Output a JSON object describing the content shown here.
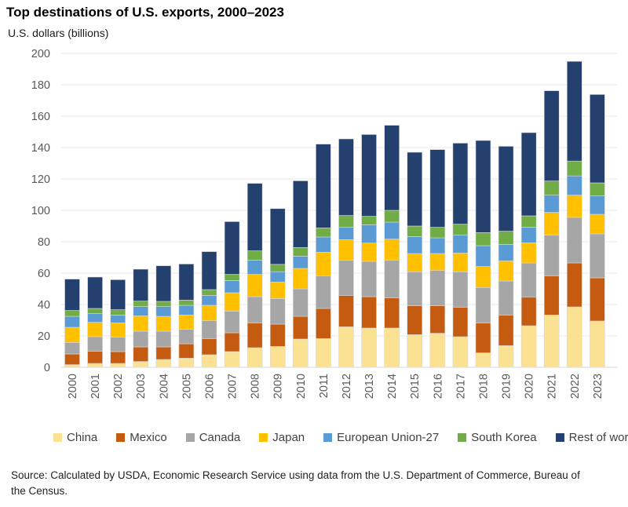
{
  "header": {
    "title": "Top destinations of U.S. exports, 2000–2023",
    "subtitle": "U.S. dollars (billions)"
  },
  "chart_data": {
    "type": "bar",
    "stacked": true,
    "title": "Top destinations of U.S. exports, 2000–2023",
    "ylabel": "U.S. dollars (billions)",
    "xlabel": "",
    "ylim": [
      0,
      200
    ],
    "ytick_step": 20,
    "grid": true,
    "legend_position": "bottom",
    "categories": [
      2000,
      2001,
      2002,
      2003,
      2004,
      2005,
      2006,
      2007,
      2008,
      2009,
      2010,
      2011,
      2012,
      2013,
      2014,
      2015,
      2016,
      2017,
      2018,
      2019,
      2020,
      2021,
      2022,
      2023
    ],
    "series": [
      {
        "name": "China",
        "color": "#FBE192",
        "values": [
          1.7,
          2.5,
          2.5,
          3.7,
          5.0,
          5.8,
          8.0,
          10.0,
          12.5,
          13.3,
          18.0,
          18.3,
          25.8,
          25.0,
          25.0,
          20.8,
          21.7,
          19.5,
          9.2,
          13.8,
          26.5,
          33.3,
          38.5,
          29.5
        ]
      },
      {
        "name": "Mexico",
        "color": "#C55A11",
        "values": [
          6.8,
          7.8,
          7.5,
          9.3,
          8.0,
          9.2,
          10.3,
          12.0,
          15.8,
          14.2,
          14.5,
          19.2,
          20.0,
          20.0,
          19.2,
          18.4,
          17.5,
          18.8,
          19.1,
          19.5,
          18.3,
          25.0,
          28.0,
          27.5
        ]
      },
      {
        "name": "Canada",
        "color": "#A6A6A6",
        "values": [
          7.3,
          9.2,
          9.2,
          10.0,
          10.0,
          9.2,
          11.4,
          13.8,
          16.7,
          16.3,
          17.5,
          20.8,
          22.5,
          22.5,
          24.1,
          21.6,
          22.5,
          22.5,
          22.5,
          21.7,
          21.7,
          25.9,
          29.0,
          28.0
        ]
      },
      {
        "name": "Japan",
        "color": "#FFC000",
        "values": [
          9.7,
          9.2,
          9.1,
          9.8,
          9.5,
          9.1,
          9.8,
          11.7,
          14.2,
          10.5,
          13.0,
          15.0,
          13.0,
          11.7,
          13.4,
          11.7,
          10.8,
          12.0,
          13.4,
          12.8,
          12.8,
          14.5,
          14.2,
          12.5
        ]
      },
      {
        "name": "European Union-27",
        "color": "#5B9BD5",
        "values": [
          7.0,
          5.5,
          5.0,
          5.9,
          6.2,
          6.2,
          6.3,
          7.8,
          9.1,
          6.6,
          7.8,
          9.7,
          7.9,
          11.6,
          10.8,
          10.8,
          10.0,
          11.4,
          13.3,
          10.5,
          10.0,
          11.0,
          12.2,
          11.7
        ]
      },
      {
        "name": "South Korea",
        "color": "#70AD47",
        "values": [
          3.7,
          3.3,
          3.4,
          3.5,
          3.3,
          3.3,
          3.7,
          3.9,
          5.9,
          4.7,
          5.5,
          5.8,
          7.5,
          5.4,
          7.5,
          6.7,
          6.7,
          7.0,
          8.3,
          8.4,
          7.2,
          9.0,
          9.5,
          8.3
        ]
      },
      {
        "name": "Rest of world",
        "color": "#24406E",
        "values": [
          20.0,
          20.0,
          19.1,
          20.3,
          22.7,
          23.0,
          24.2,
          33.6,
          43.0,
          35.5,
          42.5,
          53.4,
          48.8,
          52.1,
          54.2,
          47.0,
          49.5,
          51.6,
          58.7,
          54.1,
          53.0,
          57.5,
          63.5,
          56.3
        ]
      }
    ],
    "axis_colors": {
      "tick_label": "#595959",
      "gridline": "#E9E9E9",
      "baseline": "#D9D9D9"
    }
  },
  "source": {
    "text": "Source: Calculated by USDA, Economic Research Service using data from the U.S. Department of Commerce, Bureau of the Census."
  }
}
